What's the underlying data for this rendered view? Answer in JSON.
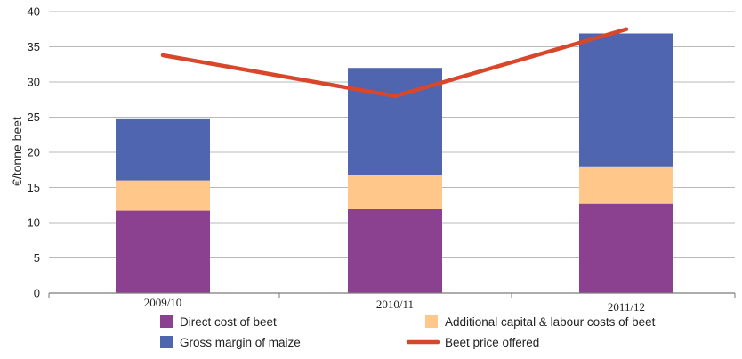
{
  "chart_data": {
    "type": "bar",
    "stacked": true,
    "categories": [
      "2009/10",
      "2010/11",
      "2011/12"
    ],
    "series": [
      {
        "name": "Direct cost of beet",
        "kind": "bar",
        "color": "#8B4190",
        "values": [
          11.7,
          11.9,
          12.7
        ]
      },
      {
        "name": "Additional capital & labour costs of beet",
        "kind": "bar",
        "color": "#FFC78A",
        "values": [
          4.3,
          4.9,
          5.3
        ]
      },
      {
        "name": "Gross margin of maize",
        "kind": "bar",
        "color": "#5065AF",
        "values": [
          8.7,
          15.2,
          18.9
        ]
      },
      {
        "name": "Beet price offered",
        "kind": "line",
        "color": "#D9472A",
        "values": [
          33.8,
          28.0,
          37.5
        ]
      }
    ],
    "ylabel": "€/tonne beet",
    "ylim": [
      0,
      40
    ],
    "yticks": [
      "0",
      "5",
      "10",
      "15",
      "20",
      "25",
      "30",
      "35",
      "40"
    ],
    "grid": true,
    "legend_position": "bottom"
  }
}
